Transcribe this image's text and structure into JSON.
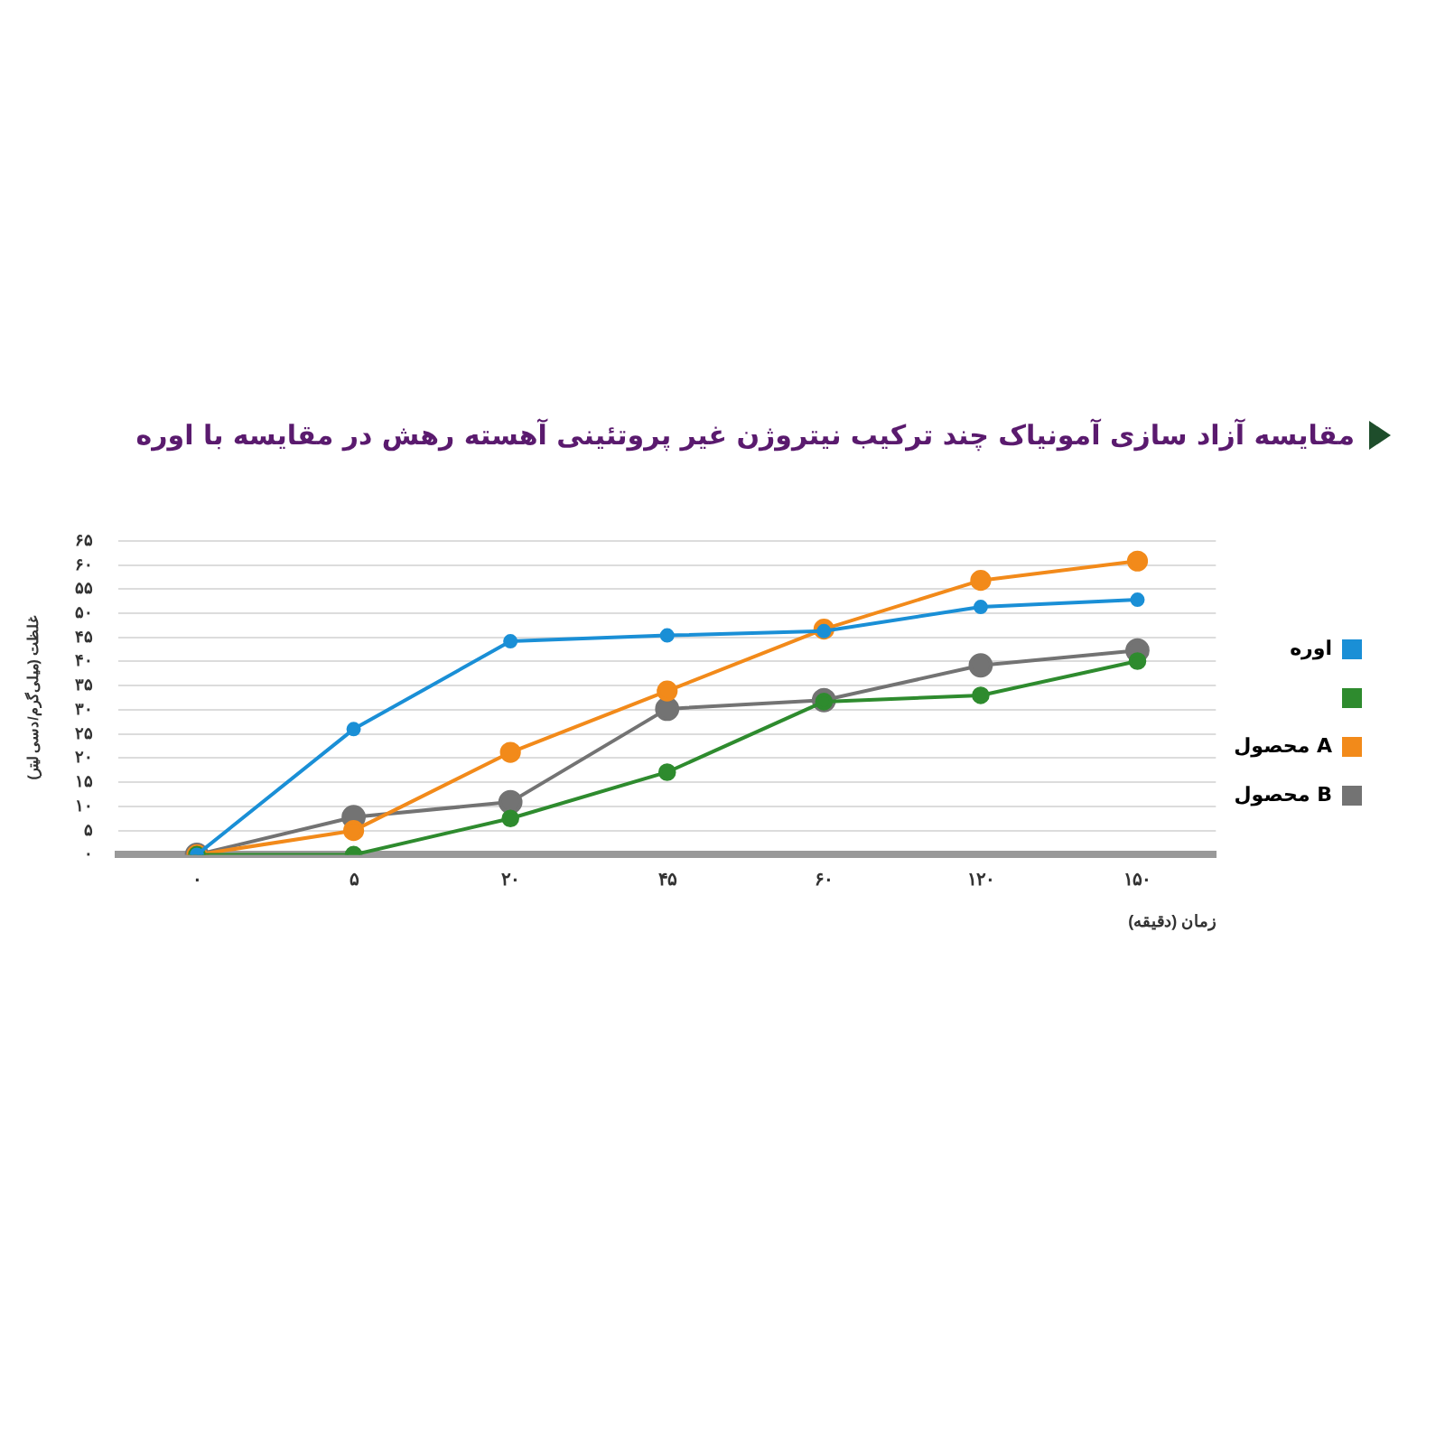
{
  "chart_data": {
    "type": "line",
    "title": "مقایسه آزاد سازی آمونیاک چند ترکیب نیتروژن غیر پروتئینی آهسته رهش در مقایسه با اوره",
    "xlabel": "زمان (دقیقه)",
    "ylabel": "غلظت (میلی‌گرم/دسی لیتر)",
    "categories": [
      "۰",
      "۵",
      "۲۰",
      "۴۵",
      "۶۰",
      "۱۲۰",
      "۱۵۰"
    ],
    "series": [
      {
        "name": "اوره",
        "color": "#1a8fd6",
        "values": [
          0,
          26,
          44.2,
          45.4,
          46.3,
          51.3,
          52.8
        ]
      },
      {
        "color": "#2e8b2e",
        "values": [
          0,
          0,
          7.5,
          17.1,
          31.7,
          33,
          40.1
        ]
      },
      {
        "name": "محصول A",
        "color": "#f28a1a",
        "values": [
          0,
          5,
          21.2,
          33.9,
          46.7,
          56.8,
          60.8
        ]
      },
      {
        "name": "محصول B",
        "color": "#737373",
        "values": [
          0,
          7.8,
          10.9,
          30.2,
          32,
          39.2,
          42.3
        ]
      }
    ],
    "ylim": [
      0,
      65
    ],
    "yticks": [
      {
        "value": 0,
        "label": "۰"
      },
      {
        "value": 5,
        "label": "۵"
      },
      {
        "value": 10,
        "label": "۱۰"
      },
      {
        "value": 15,
        "label": "۱۵"
      },
      {
        "value": 20,
        "label": "۲۰"
      },
      {
        "value": 25,
        "label": "۲۵"
      },
      {
        "value": 30,
        "label": "۳۰"
      },
      {
        "value": 35,
        "label": "۳۵"
      },
      {
        "value": 40,
        "label": "۴۰"
      },
      {
        "value": 45,
        "label": "۴۵"
      },
      {
        "value": 50,
        "label": "۵۰"
      },
      {
        "value": 55,
        "label": "۵۵"
      },
      {
        "value": 60,
        "label": "۶۰"
      },
      {
        "value": 65,
        "label": "۶۵"
      }
    ],
    "grid": "y",
    "legend": "right",
    "marker": "circle",
    "line_style": "solid"
  }
}
